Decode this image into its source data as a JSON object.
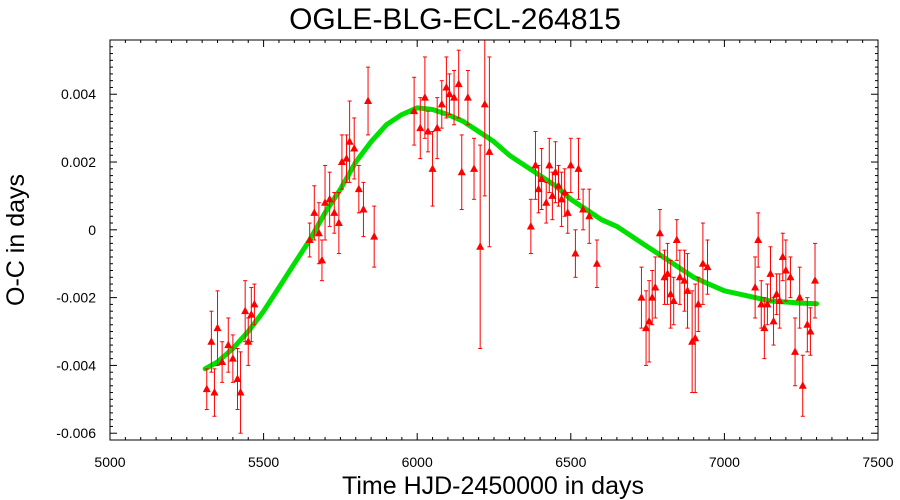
{
  "chart_data": {
    "type": "scatter",
    "title": "OGLE-BLG-ECL-264815",
    "xlabel": "Time HJD-2450000 in days",
    "ylabel": "O-C in days",
    "xlim": [
      5000,
      7500
    ],
    "ylim": [
      -0.0062,
      0.0056
    ],
    "xticks": [
      5000,
      5500,
      6000,
      6500,
      7000,
      7500
    ],
    "yticks": [
      -0.006,
      -0.004,
      -0.002,
      0,
      0.002,
      0.004
    ],
    "ytick_labels": [
      "-0.006",
      "-0.004",
      "-0.002",
      "0",
      "0.002",
      "0.004"
    ],
    "grid": false,
    "colors": {
      "points": "#ff0000",
      "fit": "#00e000",
      "axes": "#000000"
    },
    "series": [
      {
        "kind": "points_with_errorbars",
        "points": [
          {
            "x": 5315,
            "y": -0.0047,
            "err": 0.0006
          },
          {
            "x": 5330,
            "y": -0.0033,
            "err": 0.0009
          },
          {
            "x": 5340,
            "y": -0.0048,
            "err": 0.0007
          },
          {
            "x": 5350,
            "y": -0.0029,
            "err": 0.0011
          },
          {
            "x": 5365,
            "y": -0.0039,
            "err": 0.0006
          },
          {
            "x": 5385,
            "y": -0.0034,
            "err": 0.0008
          },
          {
            "x": 5400,
            "y": -0.0038,
            "err": 0.0007
          },
          {
            "x": 5415,
            "y": -0.0044,
            "err": 0.0009
          },
          {
            "x": 5425,
            "y": -0.0048,
            "err": 0.0012
          },
          {
            "x": 5440,
            "y": -0.0024,
            "err": 0.0009
          },
          {
            "x": 5450,
            "y": -0.0033,
            "err": 0.0007
          },
          {
            "x": 5460,
            "y": -0.0025,
            "err": 0.0008
          },
          {
            "x": 5470,
            "y": -0.0022,
            "err": 0.0006
          },
          {
            "x": 5650,
            "y": -0.0003,
            "err": 0.0005
          },
          {
            "x": 5665,
            "y": 0.0005,
            "err": 0.0008
          },
          {
            "x": 5680,
            "y": -0.0001,
            "err": 0.0009
          },
          {
            "x": 5690,
            "y": -0.0009,
            "err": 0.0006
          },
          {
            "x": 5700,
            "y": 0.0008,
            "err": 0.0011
          },
          {
            "x": 5715,
            "y": 0.0009,
            "err": 0.0008
          },
          {
            "x": 5730,
            "y": 0.0005,
            "err": 0.0006
          },
          {
            "x": 5745,
            "y": 0.0002,
            "err": 0.0009
          },
          {
            "x": 5755,
            "y": 0.002,
            "err": 0.0008
          },
          {
            "x": 5770,
            "y": 0.0021,
            "err": 0.0007
          },
          {
            "x": 5780,
            "y": 0.0026,
            "err": 0.0012
          },
          {
            "x": 5795,
            "y": 0.0024,
            "err": 0.0009
          },
          {
            "x": 5810,
            "y": 0.0012,
            "err": 0.0007
          },
          {
            "x": 5825,
            "y": 0.0006,
            "err": 0.0008
          },
          {
            "x": 5840,
            "y": 0.0038,
            "err": 0.001
          },
          {
            "x": 5860,
            "y": -0.0002,
            "err": 0.0009
          },
          {
            "x": 5990,
            "y": 0.0035,
            "err": 0.001
          },
          {
            "x": 6010,
            "y": 0.003,
            "err": 0.0009
          },
          {
            "x": 6025,
            "y": 0.0039,
            "err": 0.0012
          },
          {
            "x": 6035,
            "y": 0.0029,
            "err": 0.0006
          },
          {
            "x": 6050,
            "y": 0.0018,
            "err": 0.0011
          },
          {
            "x": 6065,
            "y": 0.003,
            "err": 0.0009
          },
          {
            "x": 6080,
            "y": 0.0037,
            "err": 0.0007
          },
          {
            "x": 6095,
            "y": 0.0042,
            "err": 0.0009
          },
          {
            "x": 6105,
            "y": 0.004,
            "err": 0.0006
          },
          {
            "x": 6120,
            "y": 0.0039,
            "err": 0.0008
          },
          {
            "x": 6135,
            "y": 0.0043,
            "err": 0.001
          },
          {
            "x": 6145,
            "y": 0.0017,
            "err": 0.0011
          },
          {
            "x": 6165,
            "y": 0.0039,
            "err": 0.0008
          },
          {
            "x": 6185,
            "y": 0.0018,
            "err": 0.0009
          },
          {
            "x": 6205,
            "y": -0.0005,
            "err": 0.003
          },
          {
            "x": 6220,
            "y": 0.0037,
            "err": 0.0027
          },
          {
            "x": 6235,
            "y": 0.0023,
            "err": 0.0028
          },
          {
            "x": 6370,
            "y": 0.0001,
            "err": 0.0008
          },
          {
            "x": 6385,
            "y": 0.0019,
            "err": 0.001
          },
          {
            "x": 6395,
            "y": 0.0012,
            "err": 0.0007
          },
          {
            "x": 6405,
            "y": 0.0015,
            "err": 0.0009
          },
          {
            "x": 6420,
            "y": 0.0008,
            "err": 0.0006
          },
          {
            "x": 6430,
            "y": 0.0019,
            "err": 0.0008
          },
          {
            "x": 6440,
            "y": 0.001,
            "err": 0.0007
          },
          {
            "x": 6450,
            "y": 0.0017,
            "err": 0.0009
          },
          {
            "x": 6460,
            "y": 0.0013,
            "err": 0.0006
          },
          {
            "x": 6470,
            "y": 0.0009,
            "err": 0.0008
          },
          {
            "x": 6480,
            "y": 0.0011,
            "err": 0.0007
          },
          {
            "x": 6490,
            "y": 0.0005,
            "err": 0.0006
          },
          {
            "x": 6500,
            "y": 0.0019,
            "err": 0.0008
          },
          {
            "x": 6515,
            "y": -0.0007,
            "err": 0.0007
          },
          {
            "x": 6525,
            "y": 0.0018,
            "err": 0.0009
          },
          {
            "x": 6540,
            "y": 0.0006,
            "err": 0.0006
          },
          {
            "x": 6560,
            "y": 0.0004,
            "err": 0.0008
          },
          {
            "x": 6585,
            "y": -0.001,
            "err": 0.0007
          },
          {
            "x": 6730,
            "y": -0.002,
            "err": 0.0009
          },
          {
            "x": 6745,
            "y": -0.0029,
            "err": 0.0011
          },
          {
            "x": 6755,
            "y": -0.0027,
            "err": 0.0012
          },
          {
            "x": 6765,
            "y": -0.002,
            "err": 0.0008
          },
          {
            "x": 6775,
            "y": -0.0017,
            "err": 0.0009
          },
          {
            "x": 6790,
            "y": -0.0001,
            "err": 0.0007
          },
          {
            "x": 6805,
            "y": -0.0014,
            "err": 0.0008
          },
          {
            "x": 6815,
            "y": -0.0013,
            "err": 0.0009
          },
          {
            "x": 6825,
            "y": -0.0019,
            "err": 0.001
          },
          {
            "x": 6835,
            "y": -0.0021,
            "err": 0.0007
          },
          {
            "x": 6845,
            "y": -0.0003,
            "err": 0.0006
          },
          {
            "x": 6855,
            "y": -0.0014,
            "err": 0.0008
          },
          {
            "x": 6870,
            "y": -0.0015,
            "err": 0.0009
          },
          {
            "x": 6880,
            "y": -0.0018,
            "err": 0.0011
          },
          {
            "x": 6895,
            "y": -0.0033,
            "err": 0.0015
          },
          {
            "x": 6905,
            "y": -0.0032,
            "err": 0.0016
          },
          {
            "x": 6915,
            "y": -0.0022,
            "err": 0.0008
          },
          {
            "x": 6930,
            "y": -0.001,
            "err": 0.0012
          },
          {
            "x": 6945,
            "y": -0.0011,
            "err": 0.0008
          },
          {
            "x": 7100,
            "y": -0.0017,
            "err": 0.0009
          },
          {
            "x": 7110,
            "y": -0.0003,
            "err": 0.0008
          },
          {
            "x": 7120,
            "y": -0.0022,
            "err": 0.0007
          },
          {
            "x": 7130,
            "y": -0.0029,
            "err": 0.0009
          },
          {
            "x": 7140,
            "y": -0.0022,
            "err": 0.0006
          },
          {
            "x": 7150,
            "y": -0.0013,
            "err": 0.0008
          },
          {
            "x": 7160,
            "y": -0.0027,
            "err": 0.0007
          },
          {
            "x": 7170,
            "y": -0.0019,
            "err": 0.0006
          },
          {
            "x": 7180,
            "y": -0.0021,
            "err": 0.0008
          },
          {
            "x": 7190,
            "y": -0.0008,
            "err": 0.0007
          },
          {
            "x": 7200,
            "y": -0.0012,
            "err": 0.0009
          },
          {
            "x": 7215,
            "y": -0.0014,
            "err": 0.0006
          },
          {
            "x": 7230,
            "y": -0.0036,
            "err": 0.001
          },
          {
            "x": 7245,
            "y": -0.002,
            "err": 0.0009
          },
          {
            "x": 7255,
            "y": -0.0046,
            "err": 0.0009
          },
          {
            "x": 7270,
            "y": -0.0028,
            "err": 0.0008
          },
          {
            "x": 7280,
            "y": -0.003,
            "err": 0.0007
          },
          {
            "x": 7295,
            "y": -0.0015,
            "err": 0.0011
          }
        ]
      },
      {
        "kind": "fit_curve",
        "points": [
          {
            "x": 5310,
            "y": -0.0041
          },
          {
            "x": 5350,
            "y": -0.0039
          },
          {
            "x": 5400,
            "y": -0.0035
          },
          {
            "x": 5450,
            "y": -0.003
          },
          {
            "x": 5500,
            "y": -0.0024
          },
          {
            "x": 5550,
            "y": -0.0017
          },
          {
            "x": 5600,
            "y": -0.001
          },
          {
            "x": 5650,
            "y": -0.0003
          },
          {
            "x": 5700,
            "y": 0.0005
          },
          {
            "x": 5750,
            "y": 0.0012
          },
          {
            "x": 5800,
            "y": 0.002
          },
          {
            "x": 5850,
            "y": 0.0026
          },
          {
            "x": 5900,
            "y": 0.0031
          },
          {
            "x": 5950,
            "y": 0.0034
          },
          {
            "x": 6000,
            "y": 0.0036
          },
          {
            "x": 6050,
            "y": 0.00355
          },
          {
            "x": 6100,
            "y": 0.0034
          },
          {
            "x": 6150,
            "y": 0.0032
          },
          {
            "x": 6200,
            "y": 0.0029
          },
          {
            "x": 6250,
            "y": 0.0026
          },
          {
            "x": 6300,
            "y": 0.0022
          },
          {
            "x": 6350,
            "y": 0.0019
          },
          {
            "x": 6400,
            "y": 0.0016
          },
          {
            "x": 6450,
            "y": 0.0013
          },
          {
            "x": 6500,
            "y": 0.0009
          },
          {
            "x": 6550,
            "y": 0.0006
          },
          {
            "x": 6600,
            "y": 0.0003
          },
          {
            "x": 6650,
            "y": 0.0001
          },
          {
            "x": 6700,
            "y": -0.0002
          },
          {
            "x": 6750,
            "y": -0.0005
          },
          {
            "x": 6800,
            "y": -0.0008
          },
          {
            "x": 6850,
            "y": -0.0011
          },
          {
            "x": 6900,
            "y": -0.0014
          },
          {
            "x": 6950,
            "y": -0.0016
          },
          {
            "x": 7000,
            "y": -0.0018
          },
          {
            "x": 7050,
            "y": -0.0019
          },
          {
            "x": 7100,
            "y": -0.002
          },
          {
            "x": 7150,
            "y": -0.0021
          },
          {
            "x": 7200,
            "y": -0.00213
          },
          {
            "x": 7250,
            "y": -0.00216
          },
          {
            "x": 7300,
            "y": -0.00218
          }
        ]
      }
    ]
  }
}
